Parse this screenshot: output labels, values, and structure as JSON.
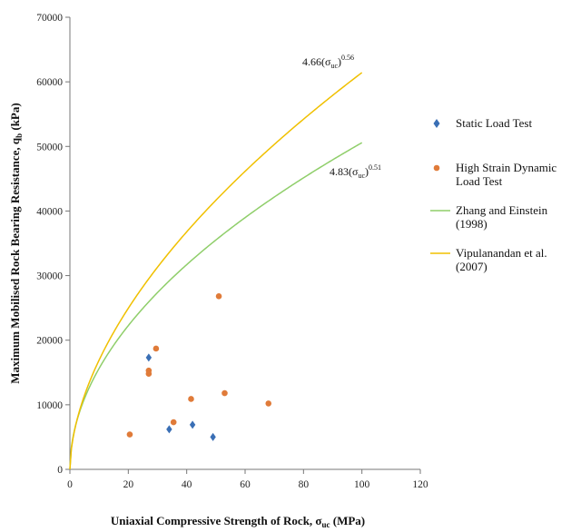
{
  "chart_data": {
    "type": "scatter",
    "xlabel_main": "Uniaxial Compressive Strength of Rock, σ",
    "xlabel_sub": "uc",
    "xlabel_unit": " (MPa)",
    "ylabel_main": "Maximum Mobilised Rock Bearing Resistance, q",
    "ylabel_sub": "b",
    "ylabel_unit": " (kPa)",
    "xlim": [
      0,
      120
    ],
    "ylim": [
      0,
      70000
    ],
    "x_ticks": [
      "0",
      "20",
      "40",
      "60",
      "80",
      "100",
      "120"
    ],
    "y_ticks": [
      "0",
      "10000",
      "20000",
      "30000",
      "40000",
      "50000",
      "60000",
      "70000"
    ],
    "grid": false,
    "legend_position": "right",
    "colors": {
      "static": "#3a6fb5",
      "dynamic": "#e07b39",
      "zhang": "#8fce6a",
      "vipul": "#f0c000"
    },
    "series": [
      {
        "name_lines": [
          "Static Load Test"
        ],
        "kind": "scatter",
        "marker": "diamond",
        "points": [
          [
            27,
            17300
          ],
          [
            34,
            6200
          ],
          [
            42,
            6900
          ],
          [
            49,
            5000
          ]
        ]
      },
      {
        "name_lines": [
          "High Strain Dynamic",
          "Load Test"
        ],
        "kind": "scatter",
        "marker": "circle",
        "points": [
          [
            20.5,
            5400
          ],
          [
            27,
            15300
          ],
          [
            27,
            14800
          ],
          [
            29.5,
            18700
          ],
          [
            35.5,
            7300
          ],
          [
            41.5,
            10900
          ],
          [
            51,
            26800
          ],
          [
            53,
            11800
          ],
          [
            68,
            10200
          ]
        ]
      },
      {
        "name_lines": [
          "Zhang and Einstein",
          "(1998)"
        ],
        "kind": "line",
        "coef": 4.83,
        "exponent": 0.51,
        "x_range": [
          0,
          100
        ]
      },
      {
        "name_lines": [
          "Vipulanandan et al.",
          "(2007)"
        ],
        "kind": "line",
        "coef": 4.66,
        "exponent": 0.56,
        "x_range": [
          0,
          100
        ]
      }
    ],
    "annotations": [
      {
        "coef": "4.66",
        "sub": "uc",
        "exp": "0.56",
        "attached_to": "Vipulanandan et al. (2007)"
      },
      {
        "coef": "4.83",
        "sub": "uc",
        "exp": "0.51",
        "attached_to": "Zhang and Einstein (1998)"
      }
    ]
  }
}
